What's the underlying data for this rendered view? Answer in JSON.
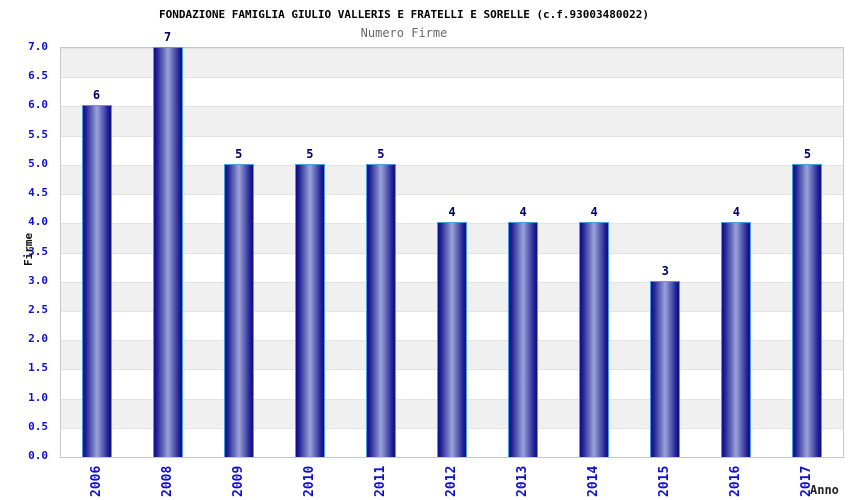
{
  "chart_data": {
    "type": "bar",
    "title": "FONDAZIONE FAMIGLIA GIULIO VALLERIS E FRATELLI E SORELLE (c.f.93003480022)",
    "subtitle": "Numero Firme",
    "xlabel": "Anno",
    "ylabel": "Firme",
    "categories": [
      "2006",
      "2008",
      "2009",
      "2010",
      "2011",
      "2012",
      "2013",
      "2014",
      "2015",
      "2016",
      "2017"
    ],
    "values": [
      6,
      7,
      5,
      5,
      5,
      4,
      4,
      4,
      3,
      4,
      5
    ],
    "ylim": [
      0.0,
      7.0
    ],
    "ytick_step": 0.5,
    "ytick_decimals": 1,
    "legend": "none",
    "grid": "alternating horizontal bands every 0.5 units",
    "bar_value_labels_shown": true,
    "colors": {
      "tick_label_blue": "#0f0fd0",
      "value_label_navy": "#000066",
      "title_black": "#000000",
      "subtitle_gray": "#696969",
      "band_gray": "#f0f0f0",
      "band_white": "#ffffff",
      "plot_border": "#c8c8c8",
      "bar_border_lightblue": "#4a9edd",
      "bar_edge_dark": "#10108c",
      "bar_center_light": "#9aa3d8"
    }
  }
}
